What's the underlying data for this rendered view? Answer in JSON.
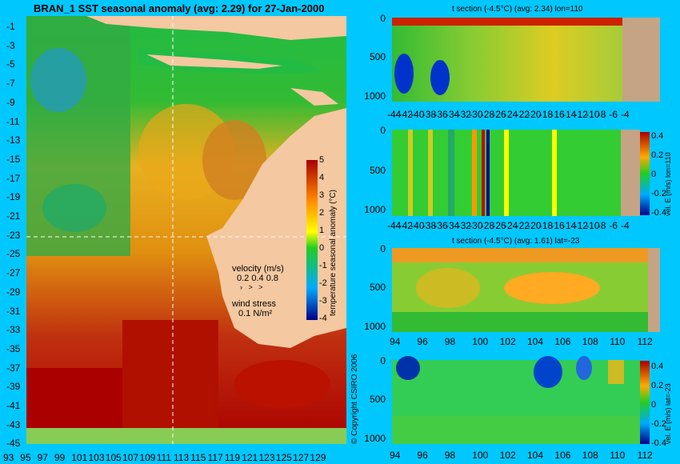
{
  "main": {
    "title": "BRAN_1 SST seasonal anomaly (avg: 2.29) for 27-Jan-2000",
    "lat_ticks": [
      "-1",
      "-3",
      "-5",
      "-7",
      "-9",
      "-11",
      "-13",
      "-15",
      "-17",
      "-19",
      "-21",
      "-23",
      "-25",
      "-27",
      "-29",
      "-31",
      "-33",
      "-35",
      "-37",
      "-39",
      "-41",
      "-43",
      "-45"
    ],
    "lon_ticks": [
      "93",
      "95",
      "97",
      "99",
      "101",
      "103",
      "105",
      "107",
      "109",
      "111",
      "113",
      "115",
      "117",
      "119",
      "121",
      "123",
      "125",
      "127",
      "129"
    ],
    "colorbar_label": "temperature seasonal anomaly (°C)",
    "colorbar_ticks": [
      "5",
      "4",
      "3",
      "2",
      "1",
      "0",
      "-1",
      "-2",
      "-3",
      "-4"
    ],
    "legend": {
      "velocity_title": "velocity (m/s)",
      "velocity_values": "0.2 0.4 0.8",
      "wind_title": "wind stress",
      "wind_value": "0.1 N/m²"
    },
    "copyright": "© Copyright CSIRO 2006"
  },
  "panels": [
    {
      "title": "t section (-4.5°C) (avg: 2.34) lon=110",
      "depth_ticks": [
        "0",
        "500",
        "1000"
      ],
      "x_ticks": [
        "-44",
        "-42",
        "-40",
        "-38",
        "-36",
        "-34",
        "-32",
        "-30",
        "-28",
        "-26",
        "-24",
        "-22",
        "-20",
        "-18",
        "-16",
        "-14",
        "-12",
        "-10",
        "-8",
        "-6",
        "-4"
      ]
    },
    {
      "title": "",
      "depth_ticks": [
        "0",
        "500",
        "1000"
      ],
      "x_ticks": [
        "-44",
        "-42",
        "-40",
        "-38",
        "-36",
        "-34",
        "-32",
        "-30",
        "-28",
        "-26",
        "-24",
        "-22",
        "-20",
        "-18",
        "-16",
        "-14",
        "-12",
        "-10",
        "-8",
        "-6",
        "-4"
      ],
      "cb_label": "vel. E (m/s) lon=110",
      "cb_ticks": [
        "0.4",
        "0.2",
        "0",
        "-0.2",
        "-0.4"
      ]
    },
    {
      "title": "t section (-4.5°C) (avg: 1.61) lat=-23",
      "depth_ticks": [
        "0",
        "500",
        "1000"
      ],
      "x_ticks": [
        "94",
        "96",
        "98",
        "100",
        "102",
        "104",
        "106",
        "108",
        "110",
        "112"
      ]
    },
    {
      "title": "",
      "depth_ticks": [
        "0",
        "500",
        "1000"
      ],
      "x_ticks": [
        "94",
        "96",
        "98",
        "100",
        "102",
        "104",
        "106",
        "108",
        "110",
        "112"
      ],
      "cb_label": "vel. E (m/s) lat=-23",
      "cb_ticks": [
        "0.4",
        "0.2",
        "0",
        "-0.2",
        "-0.4"
      ]
    }
  ]
}
